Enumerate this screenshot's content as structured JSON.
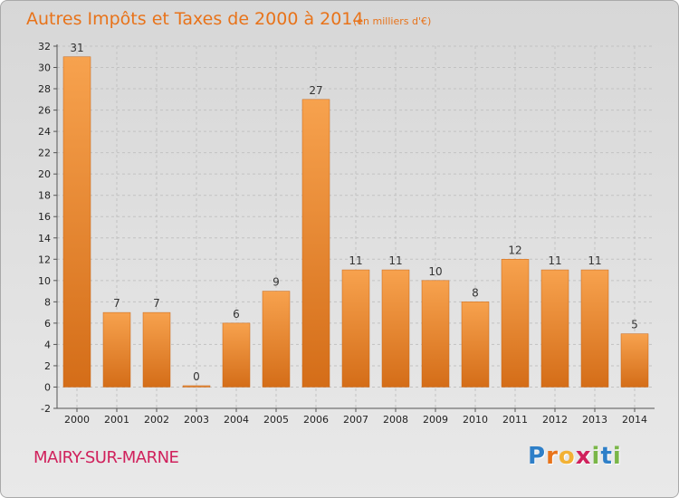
{
  "chart_data": {
    "type": "bar",
    "title": "Autres Impôts et Taxes de 2000 à 2014",
    "subtitle": "(en milliers d'€)",
    "categories": [
      "2000",
      "2001",
      "2002",
      "2003",
      "2004",
      "2005",
      "2006",
      "2007",
      "2008",
      "2009",
      "2010",
      "2011",
      "2012",
      "2013",
      "2014"
    ],
    "values": [
      31,
      7,
      7,
      0,
      6,
      9,
      27,
      11,
      11,
      10,
      8,
      12,
      11,
      11,
      5
    ],
    "ylim": [
      -2,
      32
    ],
    "yticks": [
      -2,
      0,
      2,
      4,
      6,
      8,
      10,
      12,
      14,
      16,
      18,
      20,
      22,
      24,
      26,
      28,
      30,
      32
    ],
    "grid": true,
    "bar_color": "#f0923a",
    "legend": "none"
  },
  "commune": "MAIRY-SUR-MARNE",
  "logo": {
    "letters": [
      "P",
      "r",
      "o",
      "x",
      "i",
      "t",
      "i"
    ],
    "colors": [
      "#2e7fc8",
      "#e8731a",
      "#f2b134",
      "#d0215c",
      "#7ab648",
      "#2e7fc8",
      "#7ab648"
    ]
  }
}
